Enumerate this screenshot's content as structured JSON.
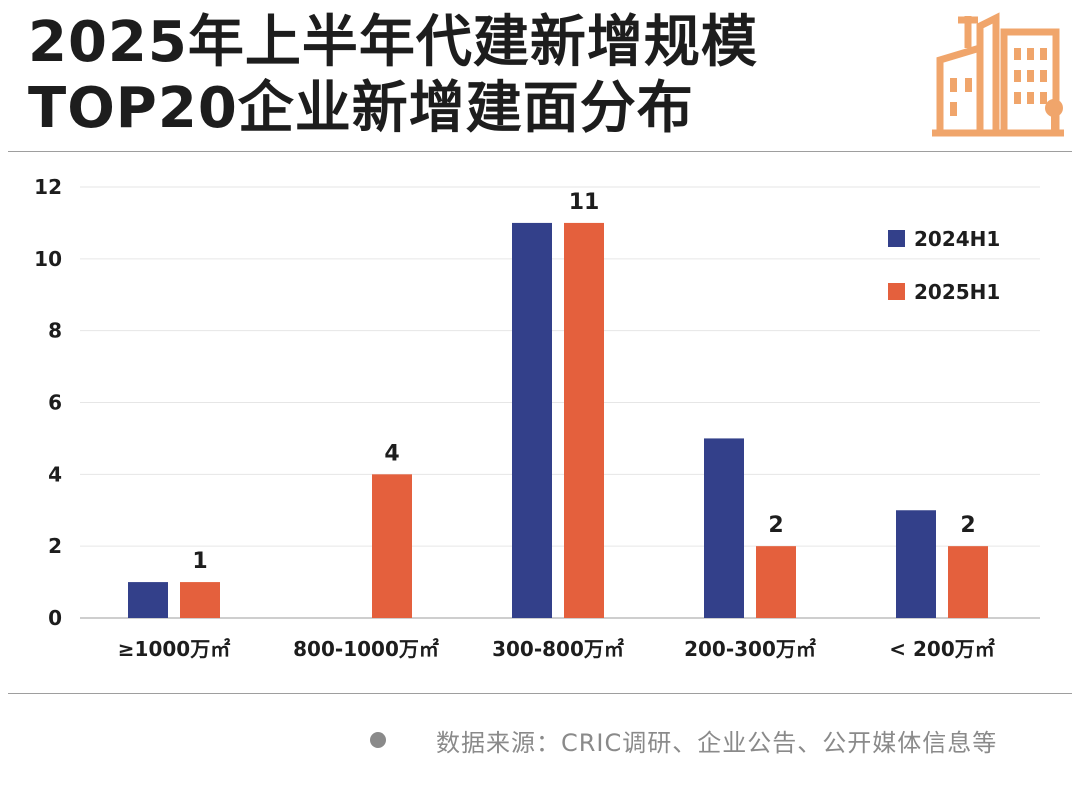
{
  "title": {
    "line1": "2025年上半年代建新增规模",
    "line2": "TOP20企业新增建面分布"
  },
  "logo": {
    "icon": "buildings-icon",
    "color": "#f0a56b"
  },
  "source": {
    "marker": "●",
    "text": "数据来源：CRIC调研、企业公告、公开媒体信息等"
  },
  "colors": {
    "series_2024": "#33408a",
    "series_2025": "#e4603d",
    "grid": "#e6e6e6",
    "axis": "#bdbdbd"
  },
  "chart_data": {
    "type": "bar",
    "categories": [
      "≥1000万㎡",
      "800-1000万㎡",
      "300-800万㎡",
      "200-300万㎡",
      "< 200万㎡"
    ],
    "series": [
      {
        "name": "2024H1",
        "values": [
          1,
          0,
          11,
          5,
          3
        ],
        "data_labels": [
          null,
          null,
          null,
          null,
          null
        ]
      },
      {
        "name": "2025H1",
        "values": [
          1,
          4,
          11,
          2,
          2
        ],
        "data_labels": [
          "1",
          "4",
          "11",
          "2",
          "2"
        ]
      }
    ],
    "yticks": [
      "0",
      "2",
      "4",
      "6",
      "8",
      "10",
      "12"
    ],
    "ylim": [
      0,
      12
    ],
    "grid": true,
    "legend_position": "top-right"
  }
}
